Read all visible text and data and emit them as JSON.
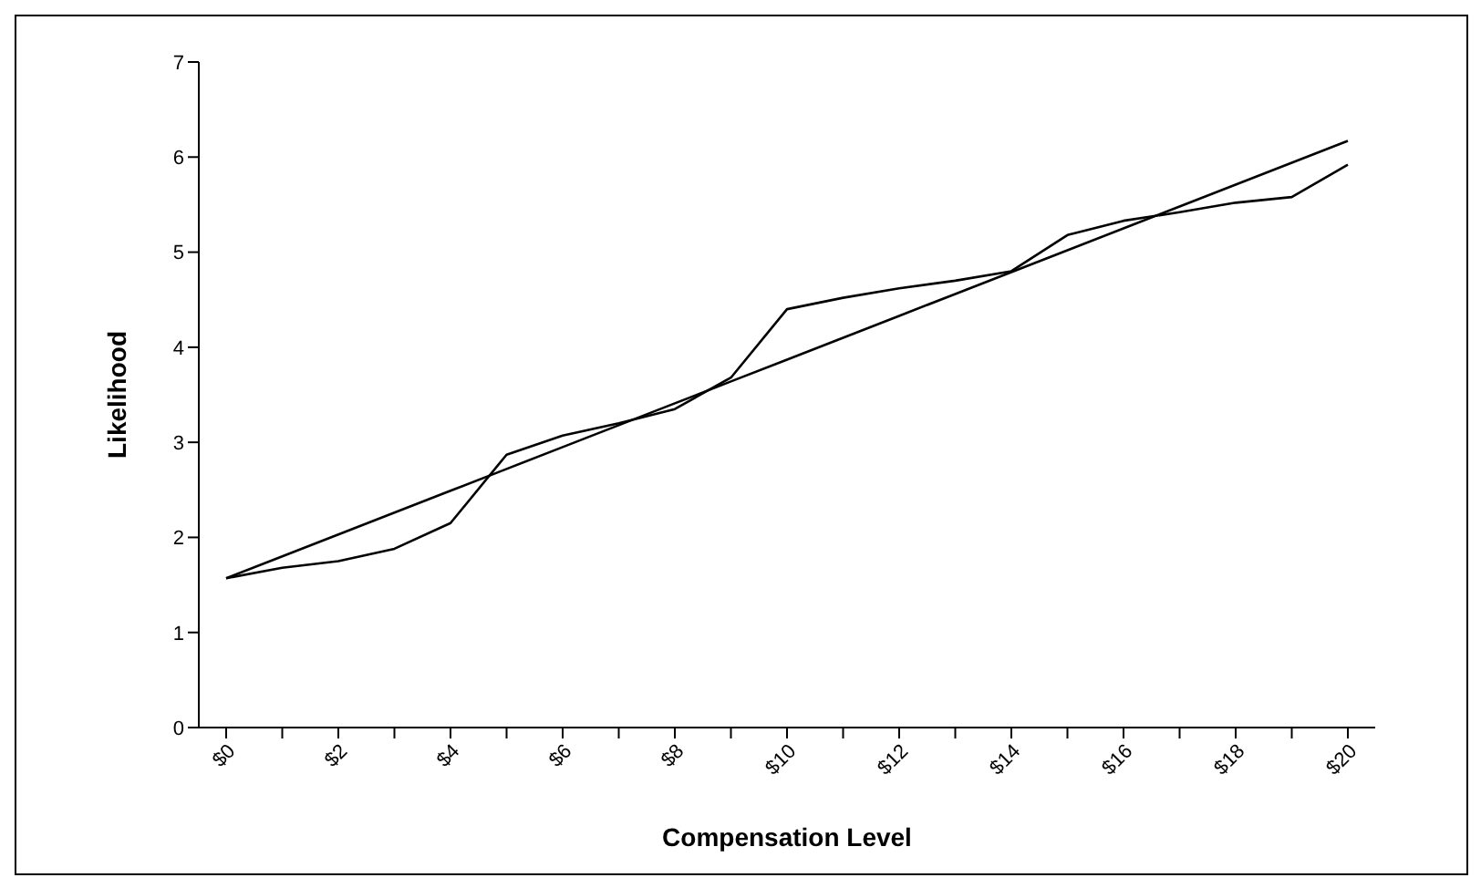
{
  "chart_data": {
    "type": "line",
    "xlabel": "Compensation Level",
    "ylabel": "Likelihood",
    "categories": [
      "$0",
      null,
      "$2",
      null,
      "$4",
      null,
      "$6",
      null,
      "$8",
      null,
      "$10",
      null,
      "$12",
      null,
      "$14",
      null,
      "$16",
      null,
      "$18",
      null,
      "$20"
    ],
    "series": [
      {
        "color": "#000000",
        "values": [
          1.57,
          1.68,
          1.75,
          1.88,
          2.15,
          2.87,
          3.07,
          3.2,
          3.35,
          3.68,
          4.4,
          4.52,
          4.62,
          4.7,
          4.8,
          5.18,
          5.33,
          5.42,
          5.52,
          5.58,
          5.92
        ]
      },
      {
        "color": "#000000",
        "values": [
          1.57,
          1.8,
          2.03,
          2.26,
          2.49,
          2.72,
          2.95,
          3.18,
          3.41,
          3.64,
          3.87,
          4.1,
          4.33,
          4.56,
          4.79,
          5.02,
          5.25,
          5.48,
          5.71,
          5.94,
          6.17
        ]
      }
    ],
    "ylim": [
      0,
      7
    ],
    "yticks": [
      0,
      1,
      2,
      3,
      4,
      5,
      6,
      7
    ],
    "grid": false,
    "marker": "none",
    "line_style": "solid"
  }
}
